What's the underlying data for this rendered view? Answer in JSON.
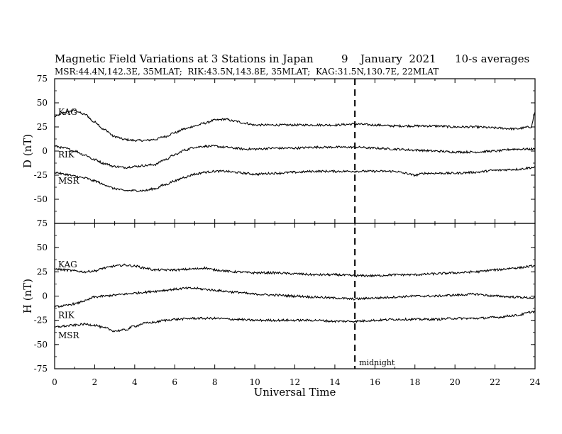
{
  "header": {
    "title": "Magnetic Field Variations at 3 Stations in Japan",
    "date_day": "9",
    "date_month_year": "January  2021",
    "averaging": "10-s averages",
    "stations_line": "MSR:44.4N,142.3E, 35MLAT;  RIK:43.5N,143.8E, 35MLAT;  KAG:31.5N,130.7E, 22MLAT"
  },
  "chart_data": [
    {
      "type": "line",
      "panel": "D",
      "ylabel": "D (nT)",
      "ylim": [
        -75,
        75
      ],
      "yticks": [
        75,
        50,
        25,
        0,
        -25,
        -50,
        -75
      ],
      "xlim": [
        0,
        24
      ],
      "series": [
        {
          "name": "KAG",
          "x": [
            0,
            0.5,
            1,
            1.5,
            2,
            2.5,
            3,
            3.5,
            4,
            4.5,
            5,
            5.5,
            6,
            6.5,
            7,
            7.5,
            8,
            8.5,
            9,
            9.5,
            10,
            11,
            12,
            13,
            14,
            15,
            16,
            17,
            18,
            19,
            20,
            21,
            22,
            23,
            23.8,
            24
          ],
          "values": [
            36,
            40,
            42,
            38,
            30,
            22,
            15,
            12,
            11,
            11,
            12,
            15,
            19,
            23,
            26,
            29,
            32,
            33,
            31,
            29,
            27,
            27,
            27,
            27,
            27,
            28,
            27,
            26,
            26,
            26,
            25,
            25,
            24,
            23,
            25,
            40
          ]
        },
        {
          "name": "RIK",
          "x": [
            0,
            0.5,
            1,
            1.5,
            2,
            2.5,
            3,
            3.5,
            4,
            4.5,
            5,
            5.5,
            6,
            6.5,
            7,
            7.5,
            8,
            8.5,
            9,
            9.5,
            10,
            11,
            12,
            13,
            14,
            15,
            16,
            17,
            18,
            19,
            20,
            21,
            22,
            23,
            24
          ],
          "values": [
            5,
            3,
            0,
            -4,
            -9,
            -13,
            -16,
            -17,
            -16,
            -15,
            -14,
            -9,
            -4,
            1,
            4,
            5,
            5,
            4,
            3,
            2,
            2,
            3,
            3,
            4,
            4,
            4,
            3,
            2,
            1,
            0,
            -1,
            -1,
            0,
            2,
            2
          ]
        },
        {
          "name": "MSR",
          "x": [
            0,
            0.5,
            1,
            1.5,
            2,
            2.5,
            3,
            3.5,
            4,
            4.5,
            5,
            5.5,
            6,
            6.5,
            7,
            7.5,
            8,
            8.5,
            9,
            9.5,
            10,
            11,
            12,
            13,
            14,
            15,
            16,
            17,
            17.5,
            18,
            18.5,
            19,
            20,
            21,
            22,
            23,
            24
          ],
          "values": [
            -22,
            -24,
            -26,
            -28,
            -31,
            -35,
            -39,
            -41,
            -41,
            -41,
            -39,
            -35,
            -31,
            -27,
            -24,
            -22,
            -21,
            -21,
            -22,
            -23,
            -24,
            -23,
            -22,
            -21,
            -21,
            -21,
            -21,
            -21,
            -23,
            -25,
            -23,
            -23,
            -23,
            -22,
            -20,
            -19,
            -17
          ]
        }
      ]
    },
    {
      "type": "line",
      "panel": "H",
      "ylabel": "H (nT)",
      "ylim": [
        -75,
        75
      ],
      "yticks": [
        75,
        50,
        25,
        0,
        -25,
        -50,
        -75
      ],
      "xlim": [
        0,
        24
      ],
      "xlabel": "Universal Time",
      "xticks": [
        0,
        2,
        4,
        6,
        8,
        10,
        12,
        14,
        16,
        18,
        20,
        22,
        24
      ],
      "series": [
        {
          "name": "KAG",
          "x": [
            0,
            0.5,
            1,
            1.5,
            2,
            2.5,
            3,
            3.5,
            4,
            4.5,
            5,
            6,
            7,
            7.5,
            8,
            9,
            10,
            11,
            12,
            13,
            14,
            15,
            16,
            17,
            18,
            19,
            20,
            21,
            22,
            23,
            24
          ],
          "values": [
            28,
            27,
            26,
            25,
            26,
            29,
            31,
            32,
            31,
            29,
            27,
            27,
            28,
            29,
            27,
            25,
            24,
            24,
            23,
            22,
            22,
            21,
            21,
            22,
            22,
            23,
            24,
            25,
            27,
            29,
            31
          ]
        },
        {
          "name": "RIK",
          "x": [
            0,
            0.5,
            1,
            1.5,
            2,
            2.5,
            3,
            3.5,
            4,
            4.5,
            5,
            5.5,
            6,
            6.5,
            7,
            7.5,
            8,
            8.5,
            9,
            10,
            11,
            12,
            13,
            14,
            15,
            16,
            17,
            18,
            19,
            20,
            21,
            22,
            23,
            24
          ],
          "values": [
            -11,
            -10,
            -8,
            -5,
            -1,
            0,
            1,
            2,
            3,
            4,
            5,
            6,
            7,
            8,
            8,
            7,
            6,
            5,
            4,
            2,
            1,
            0,
            -1,
            -2,
            -3,
            -2,
            -1,
            0,
            0,
            1,
            2,
            0,
            -1,
            -2
          ]
        },
        {
          "name": "MSR",
          "x": [
            0,
            0.5,
            1,
            1.5,
            2,
            2.5,
            3,
            3.5,
            4,
            4.5,
            5,
            5.5,
            6,
            7,
            8,
            9,
            10,
            11,
            12,
            13,
            14,
            15,
            16,
            17,
            18,
            19,
            20,
            21,
            22,
            23,
            24
          ],
          "values": [
            -32,
            -31,
            -30,
            -29,
            -30,
            -33,
            -36,
            -35,
            -31,
            -28,
            -27,
            -25,
            -24,
            -23,
            -23,
            -24,
            -25,
            -25,
            -25,
            -25,
            -26,
            -26,
            -25,
            -24,
            -24,
            -24,
            -23,
            -23,
            -22,
            -20,
            -16
          ]
        }
      ]
    }
  ],
  "annotations": {
    "midnight_label": "midnight",
    "midnight_ut": 15
  }
}
